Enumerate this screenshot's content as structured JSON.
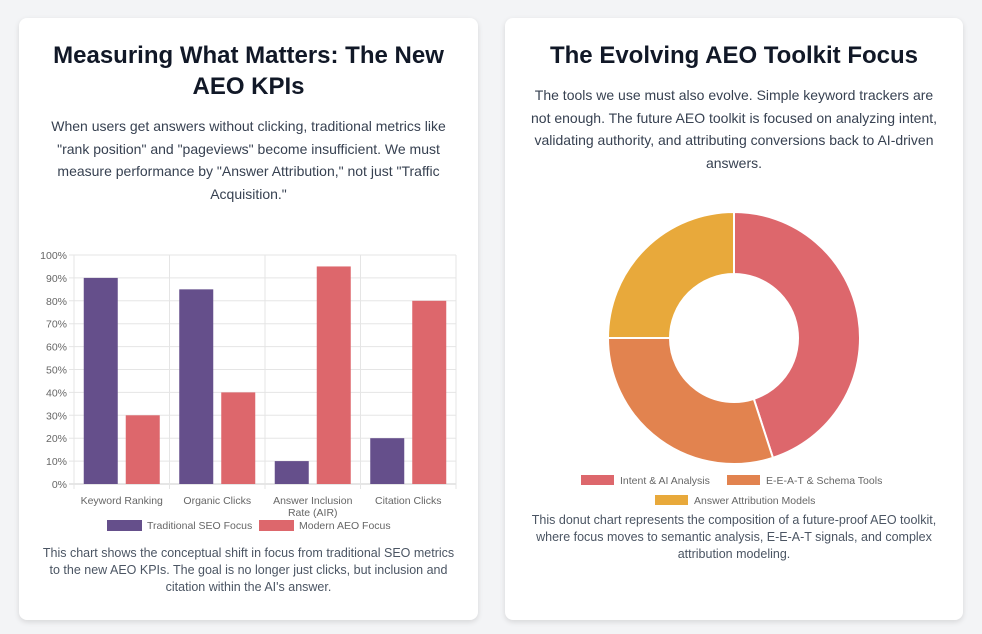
{
  "left": {
    "title": "Measuring What Matters: The New AEO KPIs",
    "description": "When users get answers without clicking, traditional metrics like \"rank position\" and \"pageviews\" become insufficient. We must measure performance by \"Answer Attribution,\" not just \"Traffic Acquisition.\"",
    "note": "This chart shows the conceptual shift in focus from traditional SEO metrics to the new AEO KPIs. The goal is no longer just clicks, but inclusion and citation within the AI's answer."
  },
  "right": {
    "title": "The Evolving AEO Toolkit Focus",
    "description": "The tools we use must also evolve. Simple keyword trackers are not enough. The future AEO toolkit is focused on analyzing intent, validating authority, and attributing conversions back to AI-driven answers.",
    "note": "This donut chart represents the composition of a future-proof AEO toolkit, where focus moves to semantic analysis, E-E-A-T signals, and complex attribution modeling."
  },
  "chart_data": [
    {
      "type": "bar",
      "categories": [
        [
          "Keyword Ranking"
        ],
        [
          "Organic Clicks"
        ],
        [
          "Answer Inclusion",
          "Rate (AIR)"
        ],
        [
          "Citation Clicks"
        ]
      ],
      "series": [
        {
          "name": "Traditional SEO Focus",
          "values": [
            90,
            85,
            10,
            20
          ],
          "color": "#654f8b"
        },
        {
          "name": "Modern AEO Focus",
          "values": [
            30,
            40,
            95,
            80
          ],
          "color": "#dd676c"
        }
      ],
      "ylim": [
        0,
        100
      ],
      "yticks": [
        "0%",
        "10%",
        "20%",
        "30%",
        "40%",
        "50%",
        "60%",
        "70%",
        "80%",
        "90%",
        "100%"
      ],
      "grid": true,
      "legend": "bottom"
    },
    {
      "type": "pie",
      "donut": true,
      "labels": [
        "Intent & AI Analysis",
        "E-E-A-T & Schema Tools",
        "Answer Attribution Models"
      ],
      "values": [
        45,
        30,
        25
      ],
      "colors": [
        "#dd676c",
        "#e2834f",
        "#e8a93b"
      ],
      "legend": "bottom"
    }
  ]
}
